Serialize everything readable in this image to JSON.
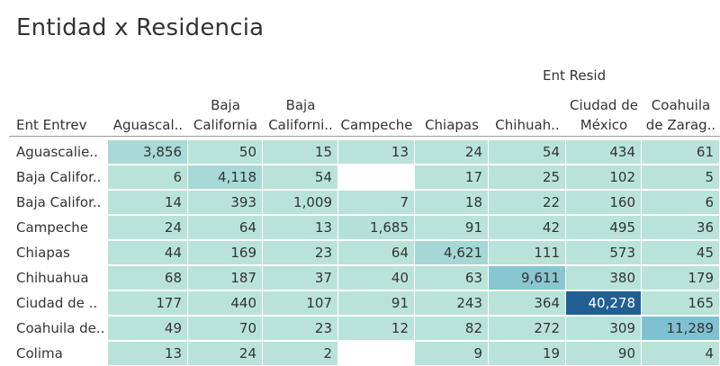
{
  "title": "Entidad x Residencia",
  "chart_data": {
    "type": "table",
    "title": "Entidad x Residencia",
    "col_header": "Ent Resid",
    "row_header": "Ent Entrev",
    "columns": [
      {
        "line1": "",
        "line2": "Aguascal.."
      },
      {
        "line1": "Baja",
        "line2": "California"
      },
      {
        "line1": "Baja",
        "line2": "Californi.."
      },
      {
        "line1": "",
        "line2": "Campeche"
      },
      {
        "line1": "",
        "line2": "Chiapas"
      },
      {
        "line1": "",
        "line2": "Chihuah.."
      },
      {
        "line1": "Ciudad de",
        "line2": "México"
      },
      {
        "line1": "Coahuila",
        "line2": "de Zarag.."
      }
    ],
    "rows": [
      {
        "label": "Aguascalie..",
        "values": [
          "3,856",
          "50",
          "15",
          "13",
          "24",
          "54",
          "434",
          "61"
        ],
        "nums": [
          3856,
          50,
          15,
          13,
          24,
          54,
          434,
          61
        ]
      },
      {
        "label": "Baja Califor..",
        "values": [
          "6",
          "4,118",
          "54",
          null,
          "17",
          "25",
          "102",
          "5"
        ],
        "nums": [
          6,
          4118,
          54,
          null,
          17,
          25,
          102,
          5
        ]
      },
      {
        "label": "Baja Califor..",
        "values": [
          "14",
          "393",
          "1,009",
          "7",
          "18",
          "22",
          "160",
          "6"
        ],
        "nums": [
          14,
          393,
          1009,
          7,
          18,
          22,
          160,
          6
        ]
      },
      {
        "label": "Campeche",
        "values": [
          "24",
          "64",
          "13",
          "1,685",
          "91",
          "42",
          "495",
          "36"
        ],
        "nums": [
          24,
          64,
          13,
          1685,
          91,
          42,
          495,
          36
        ]
      },
      {
        "label": "Chiapas",
        "values": [
          "44",
          "169",
          "23",
          "64",
          "4,621",
          "111",
          "573",
          "45"
        ],
        "nums": [
          44,
          169,
          23,
          64,
          4621,
          111,
          573,
          45
        ]
      },
      {
        "label": "Chihuahua",
        "values": [
          "68",
          "187",
          "37",
          "40",
          "63",
          "9,611",
          "380",
          "179"
        ],
        "nums": [
          68,
          187,
          37,
          40,
          63,
          9611,
          380,
          179
        ]
      },
      {
        "label": "Ciudad de ..",
        "values": [
          "177",
          "440",
          "107",
          "91",
          "243",
          "364",
          "40,278",
          "165"
        ],
        "nums": [
          177,
          440,
          107,
          91,
          243,
          364,
          40278,
          165
        ]
      },
      {
        "label": "Coahuila de..",
        "values": [
          "49",
          "70",
          "23",
          "12",
          "82",
          "272",
          "309",
          "11,289"
        ],
        "nums": [
          49,
          70,
          23,
          12,
          82,
          272,
          309,
          11289
        ]
      },
      {
        "label": "Colima",
        "values": [
          "13",
          "24",
          "2",
          null,
          "9",
          "19",
          "90",
          "4"
        ],
        "nums": [
          13,
          24,
          2,
          null,
          9,
          19,
          90,
          4
        ]
      }
    ],
    "colors": {
      "low": "#b9e3d9",
      "mid": "#7bbfd0",
      "high": "#215f93",
      "text_dark": "#333333",
      "text_light": "#ffffff"
    }
  }
}
